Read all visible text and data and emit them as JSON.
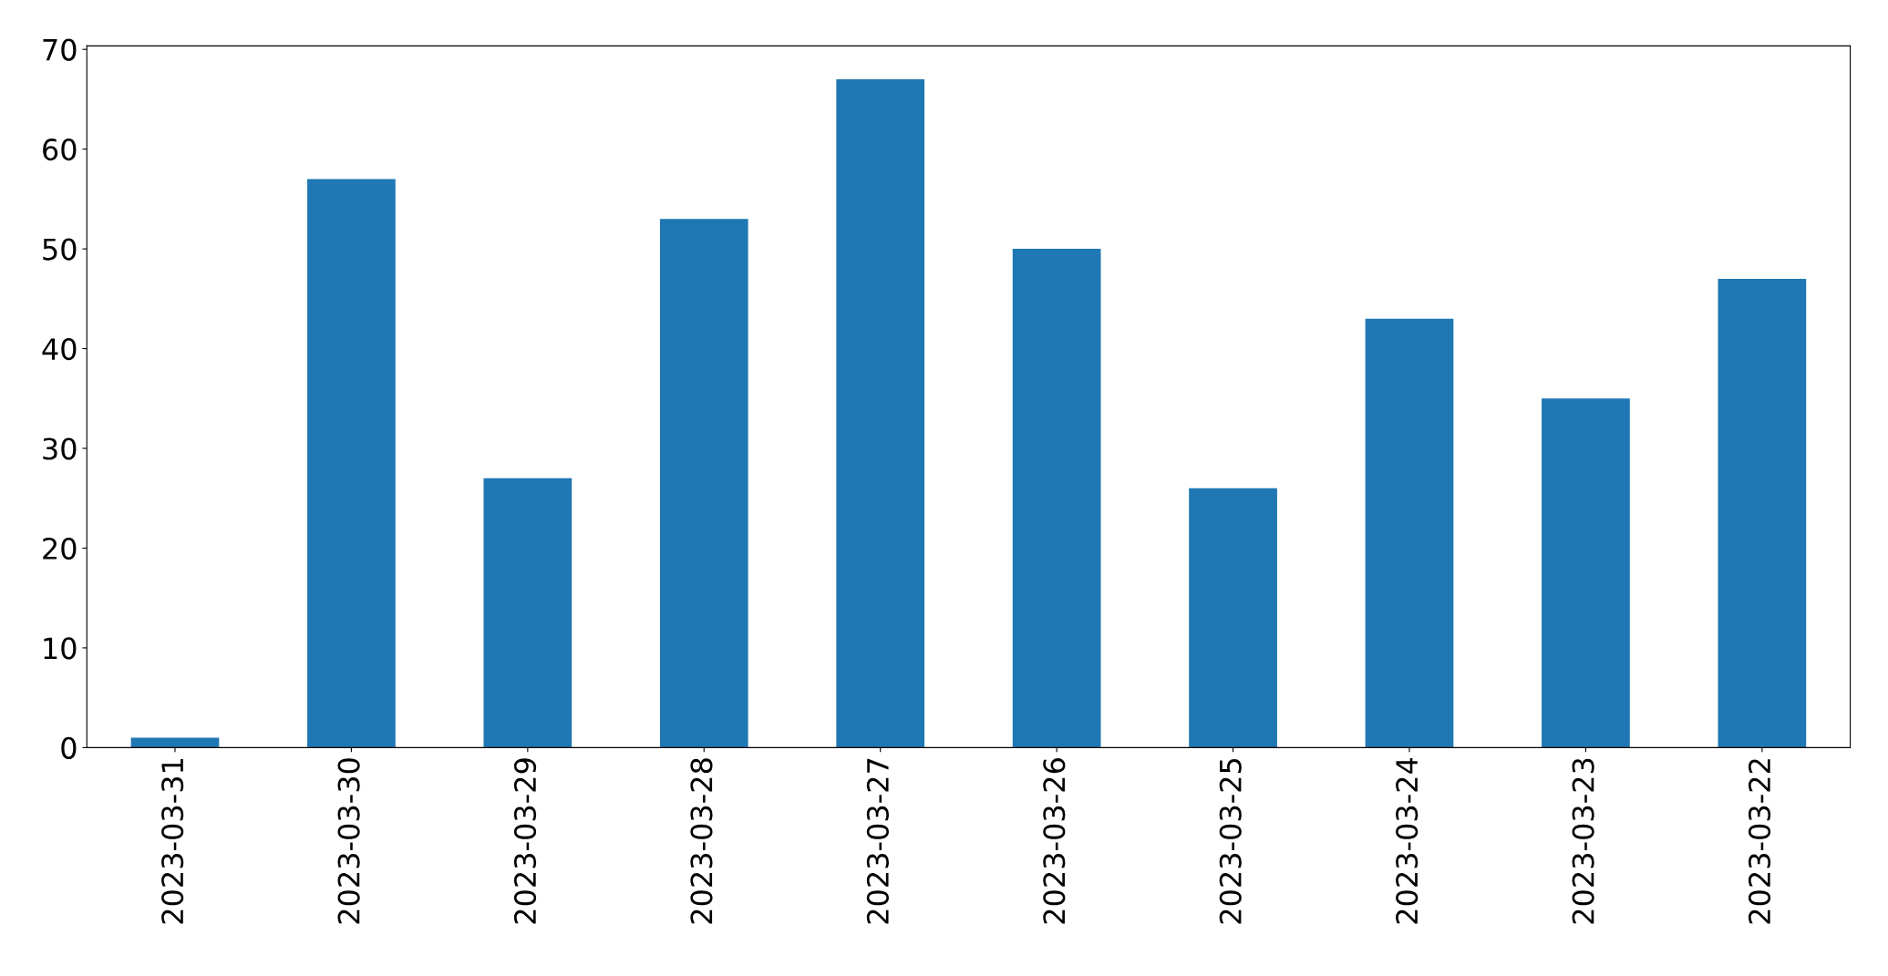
{
  "chart_data": {
    "type": "bar",
    "categories": [
      "2023-03-31",
      "2023-03-30",
      "2023-03-29",
      "2023-03-28",
      "2023-03-27",
      "2023-03-26",
      "2023-03-25",
      "2023-03-24",
      "2023-03-23",
      "2023-03-22"
    ],
    "values": [
      1,
      57,
      27,
      53,
      67,
      50,
      26,
      43,
      35,
      47
    ],
    "color": "#1f77b4",
    "ylim": [
      0,
      70.35
    ],
    "yticks": [
      0,
      10,
      20,
      30,
      40,
      50,
      60,
      70
    ],
    "grid": false,
    "legend": false
  }
}
